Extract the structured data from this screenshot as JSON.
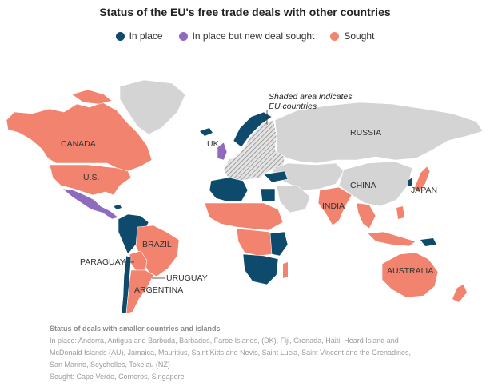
{
  "title": "Status of the EU's free trade deals with other countries",
  "colors": {
    "in_place": "#0d4a6b",
    "in_place_new_sought": "#8e6bbf",
    "sought": "#f2846f",
    "other": "#d4d4d4",
    "eu_hatch": "#9a9a9a"
  },
  "legend": [
    {
      "label": "In place",
      "status": "in_place"
    },
    {
      "label": "In place but new deal sought",
      "status": "in_place_new_sought"
    },
    {
      "label": "Sought",
      "status": "sought"
    }
  ],
  "annotation": {
    "line1": "Shaded area indicates",
    "line2": "EU countries"
  },
  "map_labels": {
    "canada": "CANADA",
    "us": "U.S.",
    "uk": "UK",
    "russia": "RUSSIA",
    "china": "CHINA",
    "japan": "JAPAN",
    "india": "INDIA",
    "brazil": "BRAZIL",
    "paraguay": "PARAGUAY",
    "uruguay": "URUGUAY",
    "argentina": "ARGENTINA",
    "australia": "AUSTRALIA"
  },
  "footer": {
    "heading": "Status of deals with smaller countries and islands",
    "in_place_line1": "In place: Andorra, Antigua and Barbuda, Barbados, Faroe Islands, (DK), Fiji, Grenada, Haiti, Heard Island and",
    "in_place_line2": "McDonald Islands (AU), Jamaica, Mauritius, Saint Kitts and Nevis, Saint Lucia, Saint Vincent and the Grenadines,",
    "in_place_line3": "San Marino, Seychelles, Tokelau (NZ)",
    "sought_line": "Sought: Cape Verde, Comoros, Singapore"
  }
}
